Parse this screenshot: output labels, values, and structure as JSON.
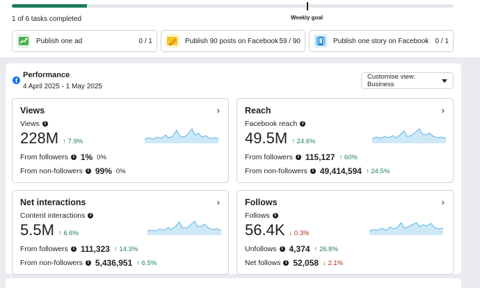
{
  "progress": {
    "fraction_complete": 0.17,
    "tasks_completed_text": "1 of 6 tasks completed",
    "goal_label": "Weekly goal"
  },
  "tasks": [
    {
      "label": "Publish one ad",
      "count": "0 / 1",
      "icon": "ad-chart-icon",
      "color": "#e6f4ea"
    },
    {
      "label": "Publish 90 posts on Facebook",
      "count": "59 / 90",
      "icon": "pencil-post-icon",
      "color": "#fff4cc"
    },
    {
      "label": "Publish one story on Facebook",
      "count": "0 / 1",
      "icon": "story-phone-icon",
      "color": "#e3f2fd"
    }
  ],
  "performance": {
    "title": "Performance",
    "dates": "4 April 2025 - 1 May 2025",
    "customise_label": "Customise view: Business"
  },
  "cards": {
    "views": {
      "title": "Views",
      "metric_label": "Views",
      "value": "228M",
      "change": "7.9%",
      "rows": [
        {
          "label": "From followers",
          "value": "1%",
          "change": "0%"
        },
        {
          "label": "From non-followers",
          "value": "99%",
          "change": "0%"
        }
      ]
    },
    "reach": {
      "title": "Reach",
      "metric_label": "Facebook reach",
      "value": "49.5M",
      "change": "24.6%",
      "rows": [
        {
          "label": "From followers",
          "value": "115,127",
          "change": "60%"
        },
        {
          "label": "From non-followers",
          "value": "49,414,594",
          "change": "24.5%"
        }
      ]
    },
    "interactions": {
      "title": "Net interactions",
      "metric_label": "Content interactions",
      "value": "5.5M",
      "change": "6.6%",
      "rows": [
        {
          "label": "From followers",
          "value": "111,323",
          "change": "14.3%"
        },
        {
          "label": "From non-followers",
          "value": "5,436,951",
          "change": "6.5%"
        }
      ]
    },
    "follows": {
      "title": "Follows",
      "metric_label": "Follows",
      "value": "56.4K",
      "change": "0.3%",
      "rows": [
        {
          "label": "Unfollows",
          "value": "4,374",
          "change": "26.8%"
        },
        {
          "label": "Net follows",
          "value": "52,058",
          "change": "2.1%"
        }
      ]
    }
  },
  "colors": {
    "accent_green": "#1a7f5a",
    "down_red": "#b42318",
    "spark_fill": "#cde8f7",
    "spark_line": "#5cb3e6",
    "facebook_blue": "#1877f2"
  }
}
